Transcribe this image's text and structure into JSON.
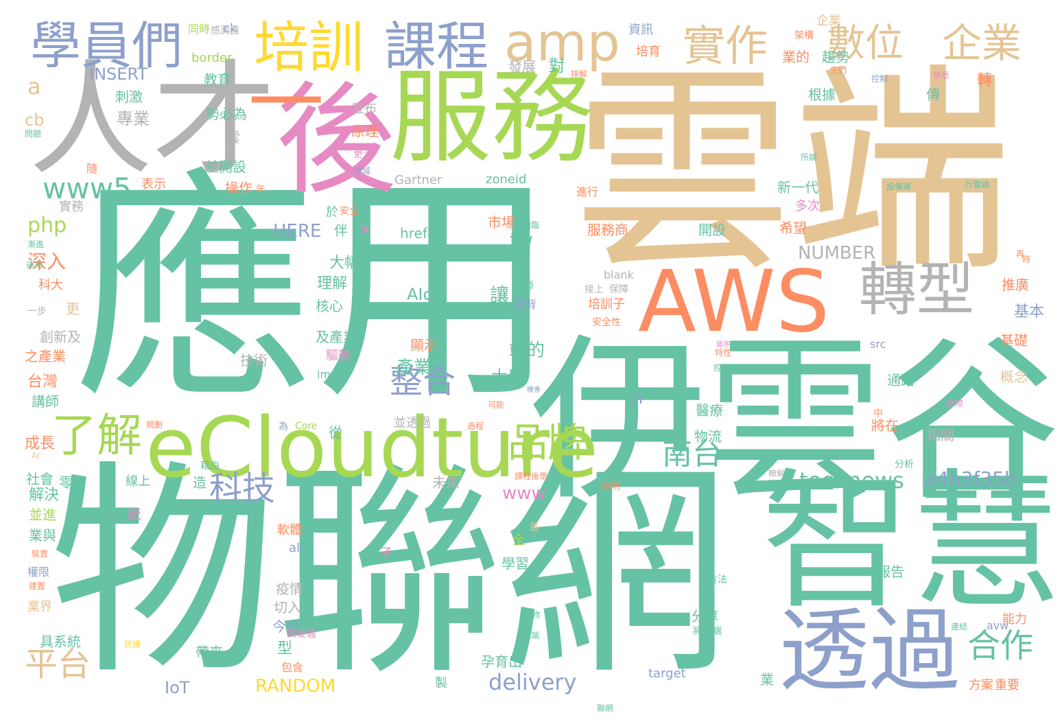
{
  "palette": {
    "teal": "#66c2a5",
    "orange": "#fc8d62",
    "blue": "#8da0cb",
    "pink": "#e78ac3",
    "green": "#a6d854",
    "yellow": "#ffd92f",
    "tan": "#e5c494",
    "gray": "#b3b3b3"
  },
  "words": [
    {
      "text": "應用",
      "color": "teal"
    },
    {
      "text": "物聯網",
      "color": "teal"
    },
    {
      "text": "雲端",
      "color": "tan"
    },
    {
      "text": "伊雲谷",
      "color": "teal"
    },
    {
      "text": "智慧",
      "color": "teal"
    },
    {
      "text": "AWS",
      "color": "orange"
    },
    {
      "text": "eCloudture",
      "color": "green"
    },
    {
      "text": "人才",
      "color": "gray"
    },
    {
      "text": "服務",
      "color": "green"
    },
    {
      "text": "後",
      "color": "pink"
    },
    {
      "text": "透過",
      "color": "blue"
    },
    {
      "text": "學員們",
      "color": "blue"
    },
    {
      "text": "培訓",
      "color": "yellow"
    },
    {
      "text": "課程",
      "color": "blue"
    },
    {
      "text": "amp",
      "color": "tan"
    },
    {
      "text": "實作",
      "color": "tan"
    },
    {
      "text": "數位",
      "color": "tan"
    },
    {
      "text": "企業",
      "color": "tan"
    },
    {
      "text": "轉型",
      "color": "gray"
    },
    {
      "text": "一",
      "color": "orange"
    },
    {
      "text": "www5",
      "color": "teal"
    },
    {
      "text": "了解",
      "color": "green"
    },
    {
      "text": "品牌",
      "color": "green"
    },
    {
      "text": "整合",
      "color": "blue"
    },
    {
      "text": "科技",
      "color": "blue"
    },
    {
      "text": "南台",
      "color": "teal"
    },
    {
      "text": "平台",
      "color": "tan"
    },
    {
      "text": "合作",
      "color": "teal"
    },
    {
      "text": "technews",
      "color": "teal"
    },
    {
      "text": "a4b3f35b",
      "color": "blue"
    },
    {
      "text": "delivery",
      "color": "blue"
    },
    {
      "text": "RANDOM",
      "color": "yellow"
    },
    {
      "text": "www",
      "color": "pink"
    },
    {
      "text": "php",
      "color": "green"
    },
    {
      "text": "HERE",
      "color": "blue"
    },
    {
      "text": "INSERT",
      "color": "blue"
    },
    {
      "text": "NUMBER",
      "color": "gray"
    },
    {
      "text": "AIoT",
      "color": "teal"
    },
    {
      "text": "tw",
      "color": "teal"
    },
    {
      "text": "href",
      "color": "teal"
    },
    {
      "text": "zoneid",
      "color": "teal"
    },
    {
      "text": "Gartner",
      "color": "gray"
    },
    {
      "text": "border",
      "color": "green"
    },
    {
      "text": "blank",
      "color": "gray"
    },
    {
      "text": "IoT",
      "color": "blue"
    },
    {
      "text": "target",
      "color": "blue"
    },
    {
      "text": "img",
      "color": "teal"
    },
    {
      "text": "src",
      "color": "blue"
    },
    {
      "text": "alt",
      "color": "blue"
    },
    {
      "text": "avw",
      "color": "blue"
    },
    {
      "text": "Core",
      "color": "green"
    },
    {
      "text": "ck",
      "color": "blue"
    },
    {
      "text": "cb",
      "color": "tan"
    },
    {
      "text": "a",
      "color": "tan"
    },
    {
      "text": "n",
      "color": "blue"
    },
    {
      "text": "AI",
      "color": "tan"
    },
    {
      "text": "產業",
      "color": "teal"
    },
    {
      "text": "端的",
      "color": "teal"
    },
    {
      "text": "大學",
      "color": "teal"
    },
    {
      "text": "深入",
      "color": "orange"
    },
    {
      "text": "教育",
      "color": "teal"
    },
    {
      "text": "專業",
      "color": "gray"
    },
    {
      "text": "刺激",
      "color": "teal"
    },
    {
      "text": "勢必為",
      "color": "teal"
    },
    {
      "text": "宣布",
      "color": "gray"
    },
    {
      "text": "原理",
      "color": "orange"
    },
    {
      "text": "更深",
      "color": "pink"
    },
    {
      "text": "領域",
      "color": "blue"
    },
    {
      "text": "並開設",
      "color": "teal"
    },
    {
      "text": "操作",
      "color": "orange"
    },
    {
      "text": "表示",
      "color": "orange"
    },
    {
      "text": "實務",
      "color": "gray"
    },
    {
      "text": "於",
      "color": "teal"
    },
    {
      "text": "安全",
      "color": "orange"
    },
    {
      "text": "伴",
      "color": "teal"
    },
    {
      "text": "大幅",
      "color": "teal"
    },
    {
      "text": "理解",
      "color": "teal"
    },
    {
      "text": "核心",
      "color": "teal"
    },
    {
      "text": "及產業",
      "color": "teal"
    },
    {
      "text": "驅動",
      "color": "pink"
    },
    {
      "text": "技術",
      "color": "gray"
    },
    {
      "text": "創新及",
      "color": "gray"
    },
    {
      "text": "之產業",
      "color": "orange"
    },
    {
      "text": "台灣",
      "color": "orange"
    },
    {
      "text": "講師",
      "color": "teal"
    },
    {
      "text": "成長",
      "color": "orange"
    },
    {
      "text": "社會",
      "color": "teal"
    },
    {
      "text": "零售",
      "color": "teal"
    },
    {
      "text": "解決",
      "color": "teal"
    },
    {
      "text": "並進",
      "color": "green"
    },
    {
      "text": "業與",
      "color": "teal"
    },
    {
      "text": "權限",
      "color": "blue"
    },
    {
      "text": "業界",
      "color": "tan"
    },
    {
      "text": "具系統",
      "color": "teal"
    },
    {
      "text": "帶來",
      "color": "teal"
    },
    {
      "text": "包含",
      "color": "orange"
    },
    {
      "text": "今日",
      "color": "blue"
    },
    {
      "text": "切入",
      "color": "gray"
    },
    {
      "text": "疫情",
      "color": "gray"
    },
    {
      "text": "軟體",
      "color": "orange"
    },
    {
      "text": "線上",
      "color": "teal"
    },
    {
      "text": "學習",
      "color": "teal"
    },
    {
      "text": "孕育出",
      "color": "teal"
    },
    {
      "text": "未來",
      "color": "gray"
    },
    {
      "text": "說明",
      "color": "orange"
    },
    {
      "text": "物流",
      "color": "teal"
    },
    {
      "text": "醫療",
      "color": "teal"
    },
    {
      "text": "將在",
      "color": "orange"
    },
    {
      "text": "相關",
      "color": "gray"
    },
    {
      "text": "分析",
      "color": "teal"
    },
    {
      "text": "報告",
      "color": "teal"
    },
    {
      "text": "方法",
      "color": "teal"
    },
    {
      "text": "分享",
      "color": "teal"
    },
    {
      "text": "將雲端",
      "color": "teal"
    },
    {
      "text": "能力",
      "color": "orange"
    },
    {
      "text": "方案",
      "color": "orange"
    },
    {
      "text": "重要",
      "color": "orange"
    },
    {
      "text": "業",
      "color": "teal"
    },
    {
      "text": "基礎",
      "color": "orange"
    },
    {
      "text": "概念",
      "color": "tan"
    },
    {
      "text": "通路",
      "color": "teal"
    },
    {
      "text": "基本",
      "color": "blue"
    },
    {
      "text": "推廣",
      "color": "orange"
    },
    {
      "text": "服務商",
      "color": "orange"
    },
    {
      "text": "開設",
      "color": "teal"
    },
    {
      "text": "希望",
      "color": "orange"
    },
    {
      "text": "新一代",
      "color": "teal"
    },
    {
      "text": "多次",
      "color": "pink"
    },
    {
      "text": "進行",
      "color": "orange"
    },
    {
      "text": "市場",
      "color": "orange"
    },
    {
      "text": "面臨",
      "color": "teal"
    },
    {
      "text": "讓",
      "color": "teal"
    },
    {
      "text": "資源",
      "color": "teal"
    },
    {
      "text": "其背",
      "color": "blue"
    },
    {
      "text": "顯示",
      "color": "orange"
    },
    {
      "text": "並透過",
      "color": "gray"
    },
    {
      "text": "培訓子",
      "color": "orange"
    },
    {
      "text": "接上",
      "color": "gray"
    },
    {
      "text": "保障",
      "color": "gray"
    },
    {
      "text": "安全性",
      "color": "orange"
    },
    {
      "text": "發展",
      "color": "gray"
    },
    {
      "text": "對",
      "color": "teal"
    },
    {
      "text": "資訊",
      "color": "blue"
    },
    {
      "text": "培育",
      "color": "orange"
    },
    {
      "text": "業的",
      "color": "orange"
    },
    {
      "text": "趨勢",
      "color": "teal"
    },
    {
      "text": "企業",
      "color": "tan"
    },
    {
      "text": "根據",
      "color": "teal"
    },
    {
      "text": "傳",
      "color": "teal"
    },
    {
      "text": "轉",
      "color": "orange"
    },
    {
      "text": "同時",
      "color": "green"
    },
    {
      "text": "感測器",
      "color": "gray"
    },
    {
      "text": "為",
      "color": "blue"
    },
    {
      "text": "從",
      "color": "teal"
    },
    {
      "text": "更",
      "color": "tan"
    },
    {
      "text": "一步",
      "color": "gray"
    },
    {
      "text": "科大",
      "color": "orange"
    },
    {
      "text": "隨",
      "color": "orange"
    },
    {
      "text": "年",
      "color": "orange"
    },
    {
      "text": "雲",
      "color": "gray"
    },
    {
      "text": "問題",
      "color": "teal"
    },
    {
      "text": "型",
      "color": "teal"
    },
    {
      "text": "造",
      "color": "teal"
    },
    {
      "text": "統",
      "color": "pink"
    },
    {
      "text": "子",
      "color": "pink"
    },
    {
      "text": "全",
      "color": "green"
    },
    {
      "text": "製",
      "color": "teal"
    },
    {
      "text": "中",
      "color": "orange"
    },
    {
      "text": "最",
      "color": "tan"
    },
    {
      "text": "進",
      "color": "pink"
    },
    {
      "text": "時",
      "color": "orange"
    },
    {
      "text": "實際",
      "color": "pink"
    },
    {
      "text": "藉由",
      "color": "teal"
    },
    {
      "text": "可能",
      "color": "orange"
    },
    {
      "text": "過程",
      "color": "orange"
    },
    {
      "text": "機會",
      "color": "blue"
    },
    {
      "text": "規劃",
      "color": "orange"
    },
    {
      "text": "課程後學",
      "color": "orange"
    },
    {
      "text": "連結",
      "color": "teal"
    },
    {
      "text": "聯網",
      "color": "teal"
    },
    {
      "text": "及物",
      "color": "teal"
    },
    {
      "text": "遠端",
      "color": "teal"
    },
    {
      "text": "將硬體",
      "color": "pink"
    },
    {
      "text": "防護",
      "color": "yellow"
    },
    {
      "text": "控制",
      "color": "blue"
    },
    {
      "text": "架構",
      "color": "orange"
    },
    {
      "text": "生們",
      "color": "orange"
    },
    {
      "text": "熟悉",
      "color": "pink"
    },
    {
      "text": "排解",
      "color": "orange"
    },
    {
      "text": "設備運",
      "color": "teal"
    },
    {
      "text": "行雲端",
      "color": "teal"
    },
    {
      "text": "所論",
      "color": "teal"
    },
    {
      "text": "再",
      "color": "orange"
    },
    {
      "text": "特性",
      "color": "orange"
    },
    {
      "text": "控管",
      "color": "teal"
    },
    {
      "text": "循序",
      "color": "pink"
    },
    {
      "text": "漸進",
      "color": "teal"
    },
    {
      "text": "運用",
      "color": "teal"
    },
    {
      "text": "裝置",
      "color": "orange"
    },
    {
      "text": "建置",
      "color": "orange"
    },
    {
      "text": "瞭解",
      "color": "gray"
    }
  ]
}
